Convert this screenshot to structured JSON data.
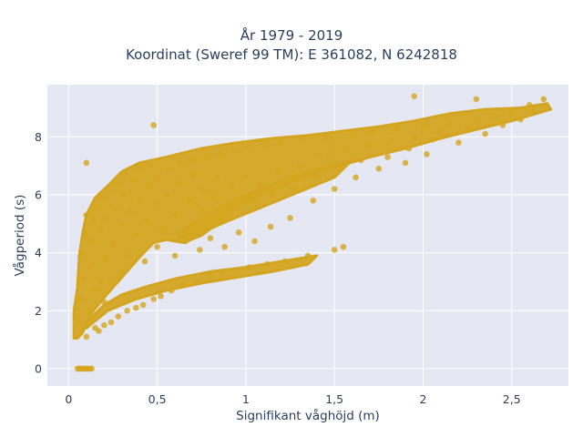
{
  "chart_data": {
    "type": "scatter",
    "title": "År 1979 - 2019",
    "subtitle": "Koordinat (Sweref 99 TM): E 361082, N 6242818",
    "xlabel": "Signifikant våghöjd (m)",
    "ylabel": "Vågperiod (s)",
    "xlim": [
      -0.12,
      2.82
    ],
    "ylim": [
      -0.6,
      9.8
    ],
    "x_ticks": [
      0,
      0.5,
      1,
      1.5,
      2,
      2.5
    ],
    "x_tick_labels": [
      "0",
      "0,5",
      "1",
      "1,5",
      "2",
      "2,5"
    ],
    "y_ticks": [
      0,
      2,
      4,
      6,
      8
    ],
    "y_tick_labels": [
      "0",
      "2",
      "4",
      "6",
      "8"
    ],
    "grid": true,
    "legend": "none",
    "colors": {
      "marker": "#d4a521",
      "plot_bg": "#e5e8f2",
      "grid": "#ffffff",
      "text": "#2a3f5f"
    },
    "series": [
      {
        "name": "",
        "points": [
          [
            0.05,
            1.2
          ],
          [
            0.06,
            1.6
          ],
          [
            0.07,
            2.4
          ],
          [
            0.08,
            3.1
          ],
          [
            0.08,
            4.0
          ],
          [
            0.09,
            4.6
          ],
          [
            0.1,
            5.3
          ],
          [
            0.1,
            1.1
          ],
          [
            0.12,
            2.0
          ],
          [
            0.12,
            3.5
          ],
          [
            0.13,
            4.4
          ],
          [
            0.14,
            5.1
          ],
          [
            0.15,
            1.4
          ],
          [
            0.15,
            2.7
          ],
          [
            0.16,
            5.6
          ],
          [
            0.17,
            1.3
          ],
          [
            0.18,
            3.0
          ],
          [
            0.18,
            4.8
          ],
          [
            0.19,
            5.9
          ],
          [
            0.2,
            1.5
          ],
          [
            0.2,
            2.3
          ],
          [
            0.21,
            3.8
          ],
          [
            0.22,
            5.2
          ],
          [
            0.22,
            6.2
          ],
          [
            0.24,
            1.6
          ],
          [
            0.25,
            2.9
          ],
          [
            0.25,
            4.3
          ],
          [
            0.26,
            5.5
          ],
          [
            0.27,
            6.4
          ],
          [
            0.28,
            1.8
          ],
          [
            0.3,
            3.3
          ],
          [
            0.3,
            5.0
          ],
          [
            0.31,
            6.0
          ],
          [
            0.32,
            6.7
          ],
          [
            0.33,
            2.0
          ],
          [
            0.34,
            3.9
          ],
          [
            0.35,
            5.4
          ],
          [
            0.36,
            6.5
          ],
          [
            0.38,
            2.1
          ],
          [
            0.38,
            4.6
          ],
          [
            0.4,
            5.8
          ],
          [
            0.4,
            6.9
          ],
          [
            0.42,
            2.2
          ],
          [
            0.43,
            3.7
          ],
          [
            0.44,
            5.1
          ],
          [
            0.45,
            6.3
          ],
          [
            0.46,
            7.0
          ],
          [
            0.48,
            2.4
          ],
          [
            0.5,
            4.2
          ],
          [
            0.5,
            5.7
          ],
          [
            0.5,
            6.6
          ],
          [
            0.52,
            2.5
          ],
          [
            0.53,
            4.8
          ],
          [
            0.55,
            6.0
          ],
          [
            0.56,
            6.9
          ],
          [
            0.58,
            2.7
          ],
          [
            0.6,
            3.9
          ],
          [
            0.6,
            5.3
          ],
          [
            0.62,
            6.4
          ],
          [
            0.63,
            7.1
          ],
          [
            0.65,
            2.9
          ],
          [
            0.66,
            4.4
          ],
          [
            0.68,
            5.8
          ],
          [
            0.7,
            6.7
          ],
          [
            0.7,
            7.2
          ],
          [
            0.72,
            3.0
          ],
          [
            0.74,
            4.1
          ],
          [
            0.75,
            5.5
          ],
          [
            0.76,
            6.2
          ],
          [
            0.78,
            7.3
          ],
          [
            0.8,
            3.2
          ],
          [
            0.8,
            4.5
          ],
          [
            0.82,
            5.9
          ],
          [
            0.84,
            6.6
          ],
          [
            0.85,
            7.4
          ],
          [
            0.87,
            3.3
          ],
          [
            0.88,
            4.2
          ],
          [
            0.9,
            5.6
          ],
          [
            0.92,
            6.3
          ],
          [
            0.93,
            7.5
          ],
          [
            0.95,
            3.4
          ],
          [
            0.96,
            4.7
          ],
          [
            0.98,
            5.9
          ],
          [
            1.0,
            6.6
          ],
          [
            1.0,
            7.6
          ],
          [
            1.02,
            3.5
          ],
          [
            1.05,
            4.4
          ],
          [
            1.06,
            5.7
          ],
          [
            1.08,
            6.3
          ],
          [
            1.1,
            7.7
          ],
          [
            1.12,
            3.6
          ],
          [
            1.14,
            4.9
          ],
          [
            1.15,
            6.0
          ],
          [
            1.18,
            6.8
          ],
          [
            1.2,
            7.8
          ],
          [
            1.22,
            3.7
          ],
          [
            1.25,
            5.2
          ],
          [
            1.27,
            6.2
          ],
          [
            1.3,
            7.0
          ],
          [
            1.32,
            7.9
          ],
          [
            1.35,
            3.9
          ],
          [
            1.38,
            5.8
          ],
          [
            1.4,
            6.6
          ],
          [
            1.42,
            7.4
          ],
          [
            1.45,
            8.0
          ],
          [
            1.5,
            4.1
          ],
          [
            1.5,
            6.2
          ],
          [
            1.53,
            6.9
          ],
          [
            1.56,
            7.6
          ],
          [
            1.6,
            8.1
          ],
          [
            1.62,
            6.6
          ],
          [
            1.65,
            7.2
          ],
          [
            1.7,
            7.7
          ],
          [
            1.72,
            8.2
          ],
          [
            1.75,
            6.9
          ],
          [
            1.8,
            7.3
          ],
          [
            1.82,
            7.9
          ],
          [
            1.85,
            8.3
          ],
          [
            1.9,
            7.1
          ],
          [
            1.92,
            7.6
          ],
          [
            1.95,
            8.0
          ],
          [
            2.0,
            8.4
          ],
          [
            2.02,
            7.4
          ],
          [
            2.05,
            7.9
          ],
          [
            2.1,
            8.2
          ],
          [
            2.15,
            8.5
          ],
          [
            2.2,
            7.8
          ],
          [
            2.25,
            8.3
          ],
          [
            2.3,
            8.6
          ],
          [
            2.35,
            8.1
          ],
          [
            2.4,
            8.7
          ],
          [
            2.45,
            8.4
          ],
          [
            2.5,
            8.8
          ],
          [
            2.55,
            8.6
          ],
          [
            2.6,
            9.1
          ],
          [
            2.68,
            9.3
          ],
          [
            0.05,
            0
          ],
          [
            0.06,
            0
          ],
          [
            0.07,
            0
          ],
          [
            0.08,
            0
          ],
          [
            0.09,
            0
          ],
          [
            0.1,
            0
          ],
          [
            0.11,
            0
          ],
          [
            0.12,
            0
          ],
          [
            0.13,
            0
          ],
          [
            0.1,
            7.1
          ],
          [
            0.48,
            8.4
          ],
          [
            1.95,
            9.4
          ],
          [
            2.3,
            9.3
          ],
          [
            2.62,
            8.9
          ],
          [
            1.55,
            4.2
          ]
        ]
      }
    ],
    "density_bands": [
      [
        [
          0.03,
          1.05
        ],
        [
          0.03,
          2.0
        ],
        [
          0.05,
          2.8
        ],
        [
          0.06,
          3.9
        ],
        [
          0.08,
          4.7
        ],
        [
          0.1,
          5.3
        ],
        [
          0.15,
          5.9
        ],
        [
          0.22,
          6.3
        ],
        [
          0.3,
          6.8
        ],
        [
          0.4,
          7.1
        ],
        [
          0.55,
          7.3
        ],
        [
          0.75,
          7.6
        ],
        [
          0.95,
          7.8
        ],
        [
          1.15,
          7.95
        ],
        [
          1.35,
          8.05
        ],
        [
          1.55,
          8.2
        ],
        [
          1.75,
          8.35
        ],
        [
          1.95,
          8.55
        ],
        [
          2.15,
          8.8
        ],
        [
          2.35,
          8.95
        ],
        [
          2.55,
          9.0
        ],
        [
          2.7,
          9.15
        ],
        [
          2.72,
          8.95
        ],
        [
          2.5,
          8.55
        ],
        [
          2.3,
          8.25
        ],
        [
          2.1,
          7.95
        ],
        [
          1.9,
          7.6
        ],
        [
          1.7,
          7.3
        ],
        [
          1.5,
          6.95
        ],
        [
          1.3,
          6.55
        ],
        [
          1.1,
          6.05
        ],
        [
          0.95,
          5.55
        ],
        [
          0.85,
          5.05
        ],
        [
          0.75,
          4.6
        ],
        [
          0.65,
          4.35
        ],
        [
          0.55,
          4.45
        ],
        [
          0.48,
          4.35
        ],
        [
          0.4,
          3.85
        ],
        [
          0.3,
          3.15
        ],
        [
          0.2,
          2.45
        ],
        [
          0.12,
          1.85
        ],
        [
          0.08,
          1.25
        ],
        [
          0.05,
          1.05
        ]
      ],
      [
        [
          0.1,
          1.6
        ],
        [
          0.2,
          2.2
        ],
        [
          0.3,
          2.55
        ],
        [
          0.45,
          2.85
        ],
        [
          0.6,
          3.1
        ],
        [
          0.8,
          3.35
        ],
        [
          1.0,
          3.5
        ],
        [
          1.15,
          3.65
        ],
        [
          1.3,
          3.8
        ],
        [
          1.4,
          3.9
        ],
        [
          1.35,
          3.6
        ],
        [
          1.15,
          3.35
        ],
        [
          0.95,
          3.15
        ],
        [
          0.75,
          2.95
        ],
        [
          0.55,
          2.7
        ],
        [
          0.38,
          2.4
        ],
        [
          0.22,
          2.0
        ],
        [
          0.1,
          1.4
        ]
      ],
      [
        [
          0.62,
          4.7
        ],
        [
          0.75,
          5.2
        ],
        [
          0.9,
          5.7
        ],
        [
          1.05,
          6.1
        ],
        [
          1.25,
          6.6
        ],
        [
          1.45,
          6.95
        ],
        [
          1.6,
          7.2
        ],
        [
          1.5,
          6.6
        ],
        [
          1.3,
          6.1
        ],
        [
          1.1,
          5.6
        ],
        [
          0.9,
          5.1
        ],
        [
          0.75,
          4.7
        ],
        [
          0.62,
          4.5
        ]
      ]
    ]
  }
}
